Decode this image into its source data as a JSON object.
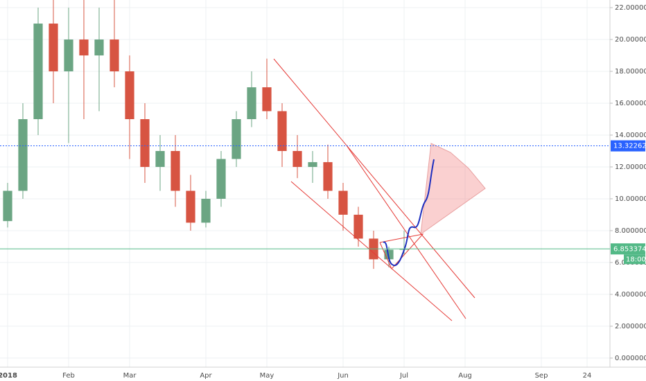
{
  "chart_data": {
    "type": "candlestick",
    "categories": [
      "2018",
      null,
      null,
      null,
      "Feb",
      null,
      null,
      null,
      "Mar",
      null,
      null,
      null,
      null,
      "Apr",
      null,
      null,
      null,
      "May",
      null,
      null,
      null,
      null,
      "Jun",
      null,
      null,
      null,
      "Jul",
      null,
      null,
      null,
      "Aug",
      null,
      null,
      null,
      null,
      "Sep",
      null,
      null,
      "24",
      null
    ],
    "open": [
      8.6,
      10.5,
      15,
      21,
      18,
      20,
      19,
      20,
      18,
      15,
      12,
      13,
      10.5,
      8.5,
      10,
      12.5,
      15,
      17,
      15.5,
      13,
      12,
      12.3,
      10.5,
      9,
      7.5,
      6.2,
      6.8,
      null,
      null,
      null,
      null,
      null,
      null,
      null,
      null,
      null,
      null,
      null,
      null,
      null
    ],
    "high": [
      11,
      16,
      22,
      22.5,
      22,
      22.5,
      22,
      22.5,
      19,
      16,
      14,
      14,
      11.5,
      10.5,
      13,
      15.5,
      18,
      18.8,
      16,
      14,
      13,
      13.4,
      11,
      9.5,
      8,
      7,
      8,
      null,
      null,
      null,
      null,
      null,
      null,
      null,
      null,
      null,
      null,
      null,
      null,
      null
    ],
    "low": [
      8.2,
      10,
      14,
      16,
      13.5,
      15,
      15.5,
      17,
      12.5,
      11,
      10.5,
      9.5,
      8,
      8.2,
      9.5,
      12,
      14.5,
      15,
      12,
      11.3,
      11,
      10,
      8,
      7,
      5.6,
      5.7,
      6.5,
      null,
      null,
      null,
      null,
      null,
      null,
      null,
      null,
      null,
      null,
      null,
      null,
      null
    ],
    "close": [
      10.5,
      15,
      21,
      18,
      20,
      19,
      20,
      18,
      15,
      12,
      13,
      10.5,
      8.5,
      10,
      12.5,
      15,
      17,
      15.5,
      13,
      12,
      12.3,
      10.5,
      9,
      7.5,
      6.2,
      6.8,
      6.85,
      null,
      null,
      null,
      null,
      null,
      null,
      null,
      null,
      null,
      null,
      null,
      null,
      null
    ],
    "up_color": "#6ba583",
    "down_color": "#d75442",
    "ylim": [
      -0.57,
      22.48
    ],
    "yticks": [
      {
        "value": 0,
        "label": "0.000000"
      },
      {
        "value": 2,
        "label": "2.000000"
      },
      {
        "value": 4,
        "label": "4.000000"
      },
      {
        "value": 6,
        "label": "6.000000"
      },
      {
        "value": 8,
        "label": "8.000000"
      },
      {
        "value": 10,
        "label": "10.000000"
      },
      {
        "value": 12,
        "label": "12.000000"
      },
      {
        "value": 14,
        "label": "14.000000"
      },
      {
        "value": 16,
        "label": "16.000000"
      },
      {
        "value": 18,
        "label": "18.000000"
      },
      {
        "value": 20,
        "label": "20.000000"
      },
      {
        "value": 22,
        "label": "22.000000"
      }
    ],
    "grid": true,
    "levels": [
      {
        "value": 13.322624,
        "label": "13.322624",
        "color": "#2962ff"
      },
      {
        "value": 6.853374,
        "label": "6.853374",
        "color": "#53b987"
      }
    ],
    "price_countdown": "18:00"
  }
}
